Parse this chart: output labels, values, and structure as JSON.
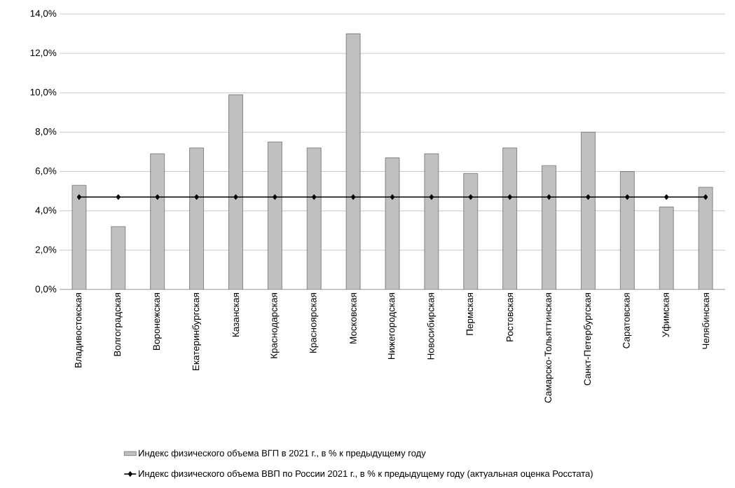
{
  "chart_data": {
    "type": "bar",
    "categories": [
      "Владивостокская",
      "Волгоградская",
      "Воронежская",
      "Екатеринбургская",
      "Казанская",
      "Краснодарская",
      "Красноярская",
      "Московская",
      "Нижегородская",
      "Новосибирская",
      "Пермская",
      "Ростовская",
      "Самарско-Тольяттинская",
      "Санкт-Петербургская",
      "Саратовская",
      "Уфимская",
      "Челябинская"
    ],
    "series": [
      {
        "name": "Индекс физического объема ВГП в 2021 г., в % к предыдущему году",
        "type": "bar",
        "color": "#c0c0c0",
        "values": [
          5.3,
          3.2,
          6.9,
          7.2,
          9.9,
          7.5,
          7.2,
          13.0,
          6.7,
          6.9,
          5.9,
          7.2,
          6.3,
          8.0,
          6.0,
          4.2,
          5.2
        ]
      },
      {
        "name": "Индекс физического объема ВВП по России 2021 г., в % к предыдущему году (актуальная оценка Росстата)",
        "type": "line",
        "color": "#000000",
        "values": [
          4.7,
          4.7,
          4.7,
          4.7,
          4.7,
          4.7,
          4.7,
          4.7,
          4.7,
          4.7,
          4.7,
          4.7,
          4.7,
          4.7,
          4.7,
          4.7,
          4.7
        ]
      }
    ],
    "ylim": [
      0,
      14
    ],
    "yticks": [
      {
        "value": 0,
        "label": "0,0%"
      },
      {
        "value": 2,
        "label": "2,0%"
      },
      {
        "value": 4,
        "label": "4,0%"
      },
      {
        "value": 6,
        "label": "6,0%"
      },
      {
        "value": 8,
        "label": "8,0%"
      },
      {
        "value": 10,
        "label": "10,0%"
      },
      {
        "value": 12,
        "label": "12,0%"
      },
      {
        "value": 14,
        "label": "14,0%"
      }
    ],
    "grid": "y",
    "legend": "bottom",
    "marker": "diamond",
    "line_style": "solid"
  }
}
